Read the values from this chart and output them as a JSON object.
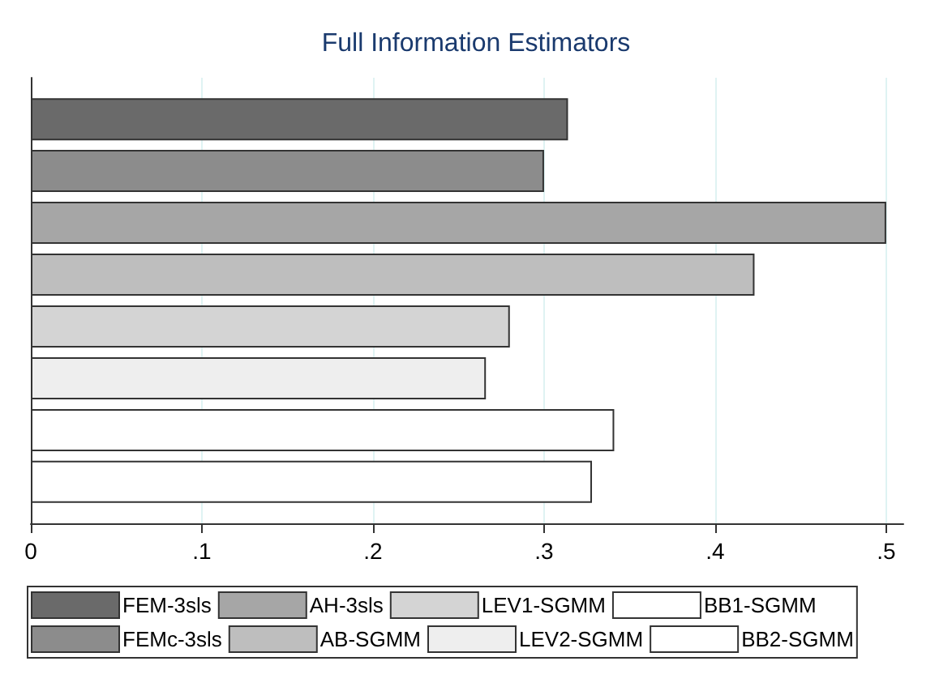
{
  "chart_data": {
    "type": "bar",
    "orientation": "horizontal",
    "title": "Full Information Estimators",
    "categories": [
      null
    ],
    "series": [
      {
        "name": "FEM-3sls",
        "color": "#6a6a6a",
        "values": [
          0.314
        ]
      },
      {
        "name": "FEMc-3sls",
        "color": "#8c8c8c",
        "values": [
          0.3
        ]
      },
      {
        "name": "AH-3sls",
        "color": "#a6a6a6",
        "values": [
          0.5
        ]
      },
      {
        "name": "AB-SGMM",
        "color": "#bebebe",
        "values": [
          0.423
        ]
      },
      {
        "name": "LEV1-SGMM",
        "color": "#d4d4d4",
        "values": [
          0.28
        ]
      },
      {
        "name": "LEV2-SGMM",
        "color": "#eeeeee",
        "values": [
          0.266
        ]
      },
      {
        "name": "BB1-SGMM",
        "color": "#ffffff",
        "values": [
          0.341
        ]
      },
      {
        "name": "BB2-SGMM",
        "color": "#ffffff",
        "values": [
          0.328
        ]
      }
    ],
    "xlim": [
      0,
      0.51
    ],
    "xticks": [
      {
        "value": 0,
        "label": "0"
      },
      {
        "value": 0.1,
        "label": ".1"
      },
      {
        "value": 0.2,
        "label": ".2"
      },
      {
        "value": 0.3,
        "label": ".3"
      },
      {
        "value": 0.4,
        "label": ".4"
      },
      {
        "value": 0.5,
        "label": ".5"
      }
    ],
    "grid": "x",
    "legend": "bottom"
  }
}
